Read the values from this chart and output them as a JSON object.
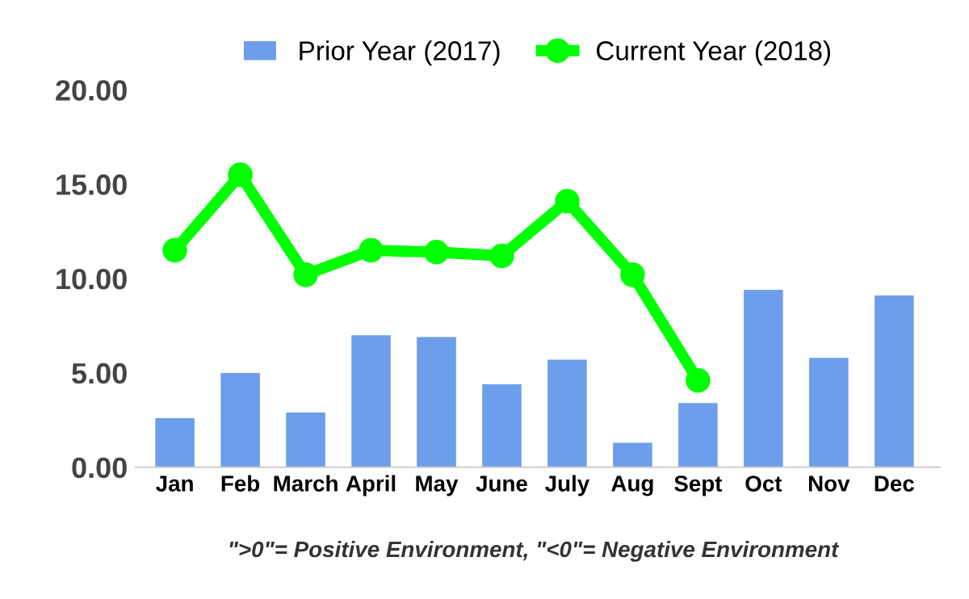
{
  "chart_data": {
    "type": "bar",
    "categories": [
      "Jan",
      "Feb",
      "March",
      "April",
      "May",
      "June",
      "July",
      "Aug",
      "Sept",
      "Oct",
      "Nov",
      "Dec"
    ],
    "series": [
      {
        "name": "Prior Year (2017)",
        "color": "#6d9eeb",
        "values": [
          2.6,
          5.0,
          2.9,
          7.0,
          6.9,
          4.4,
          5.7,
          1.3,
          3.4,
          9.4,
          5.8,
          9.1
        ]
      },
      {
        "name": "Current Year (2018)",
        "type": "line",
        "color": "#00ff00",
        "marker": "circle",
        "values": [
          11.5,
          15.5,
          10.2,
          11.5,
          11.4,
          11.2,
          14.1,
          10.2,
          4.6,
          null,
          null,
          null
        ]
      }
    ],
    "ylim": [
      0,
      20
    ],
    "yticks": [
      {
        "value": 0,
        "label": "0.00"
      },
      {
        "value": 5,
        "label": "5.00"
      },
      {
        "value": 10,
        "label": "10.00"
      },
      {
        "value": 15,
        "label": "15.00"
      },
      {
        "value": 20,
        "label": "20.00"
      }
    ],
    "legend": "top",
    "grid": false,
    "annotations": [
      "\">0\"= Positive Environment, \"<0\"= Negative Environment"
    ]
  }
}
